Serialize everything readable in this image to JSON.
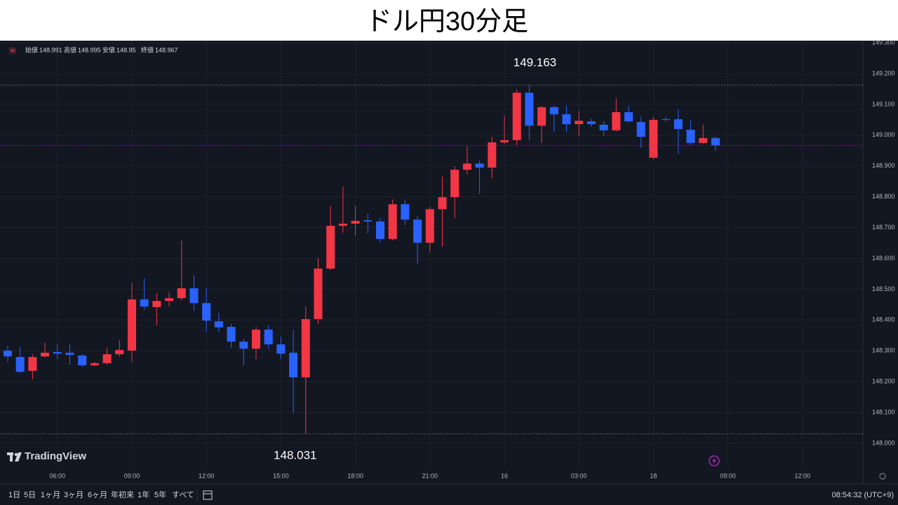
{
  "title": "ドル円30分足",
  "chart_data": {
    "type": "candlestick",
    "ohlc_labels": [
      "始値",
      "高値",
      "安値",
      "終値"
    ],
    "open": [
      148.301,
      148.28,
      148.235,
      148.282,
      148.296,
      148.294,
      148.285,
      148.253,
      148.26,
      148.289,
      148.301,
      148.467,
      148.442,
      148.462,
      148.471,
      148.503,
      148.455,
      148.396,
      148.378,
      148.33,
      148.307,
      148.369,
      148.321,
      148.294,
      148.214,
      148.403,
      148.567,
      148.706,
      148.713,
      148.724,
      148.72,
      148.663,
      148.776,
      148.726,
      148.651,
      148.76,
      148.799,
      148.888,
      148.908,
      148.895,
      148.977,
      148.984,
      149.138,
      149.031,
      149.091,
      149.068,
      149.036,
      149.045,
      149.034,
      149.016,
      149.075,
      149.043,
      148.927,
      149.052,
      149.052,
      149.018,
      148.975,
      148.991
    ],
    "high": [
      148.316,
      148.312,
      148.289,
      148.326,
      148.323,
      148.321,
      148.289,
      148.264,
      148.31,
      148.335,
      148.521,
      148.535,
      148.487,
      148.49,
      148.658,
      148.546,
      148.503,
      148.423,
      148.387,
      148.339,
      148.378,
      148.383,
      148.346,
      148.369,
      148.444,
      148.601,
      148.77,
      148.833,
      148.77,
      148.745,
      148.731,
      148.792,
      148.792,
      148.738,
      148.767,
      148.865,
      148.899,
      148.965,
      148.918,
      148.995,
      149.063,
      149.148,
      149.163,
      149.095,
      149.095,
      149.097,
      149.079,
      149.054,
      149.045,
      149.12,
      149.095,
      149.061,
      149.059,
      149.059,
      149.084,
      149.047,
      149.034,
      148.995
    ],
    "low": [
      148.264,
      148.228,
      148.207,
      148.278,
      148.273,
      148.255,
      148.248,
      148.25,
      148.255,
      148.282,
      148.266,
      148.433,
      148.383,
      148.444,
      148.464,
      148.43,
      148.362,
      148.36,
      148.31,
      148.253,
      148.273,
      148.307,
      148.273,
      148.096,
      148.031,
      148.387,
      148.562,
      148.683,
      148.674,
      148.681,
      148.653,
      148.658,
      148.708,
      148.583,
      148.622,
      148.638,
      148.731,
      148.874,
      148.811,
      148.861,
      148.972,
      148.968,
      148.984,
      148.975,
      149.011,
      149.011,
      148.997,
      149.027,
      148.997,
      149.011,
      149.041,
      148.959,
      148.922,
      149.045,
      148.94,
      148.968,
      148.972,
      148.95
    ],
    "close": [
      148.282,
      148.232,
      148.28,
      148.294,
      148.291,
      148.287,
      148.253,
      148.26,
      148.289,
      148.303,
      148.467,
      148.444,
      148.462,
      148.471,
      148.503,
      148.455,
      148.398,
      148.376,
      148.33,
      148.307,
      148.369,
      148.321,
      148.291,
      148.214,
      148.403,
      148.567,
      148.706,
      148.713,
      148.722,
      148.72,
      148.663,
      148.776,
      148.726,
      148.651,
      148.76,
      148.799,
      148.888,
      148.908,
      148.895,
      148.977,
      148.984,
      149.138,
      149.031,
      149.091,
      149.068,
      149.036,
      149.047,
      149.036,
      149.016,
      149.075,
      149.045,
      148.995,
      149.05,
      149.05,
      149.02,
      148.975,
      148.991,
      148.967
    ],
    "up_color": "#f23645",
    "down_color": "#2962ff",
    "last_price_color": "#9c27b0",
    "ylim": [
      147.918,
      149.307
    ],
    "yticks": [
      {
        "value": 148.0,
        "label": "148.000"
      },
      {
        "value": 148.1,
        "label": "148.100"
      },
      {
        "value": 148.2,
        "label": "148.200"
      },
      {
        "value": 148.3,
        "label": "148.300"
      },
      {
        "value": 148.4,
        "label": "148.400"
      },
      {
        "value": 148.5,
        "label": "148.500"
      },
      {
        "value": 148.6,
        "label": "148.600"
      },
      {
        "value": 148.7,
        "label": "148.700"
      },
      {
        "value": 148.8,
        "label": "148.800"
      },
      {
        "value": 148.9,
        "label": "148.900"
      },
      {
        "value": 149.0,
        "label": "149.000"
      },
      {
        "value": 149.1,
        "label": "149.100"
      },
      {
        "value": 149.2,
        "label": "149.200"
      },
      {
        "value": 149.3,
        "label": "149.300"
      }
    ],
    "xlim": [
      -0.62,
      68.87
    ],
    "xticks": [
      {
        "value": 4,
        "label": "06:00"
      },
      {
        "value": 10,
        "label": "09:00"
      },
      {
        "value": 16,
        "label": "12:00"
      },
      {
        "value": 22,
        "label": "15:00"
      },
      {
        "value": 28,
        "label": "18:00"
      },
      {
        "value": 34,
        "label": "21:00"
      },
      {
        "value": 40,
        "label": "16"
      },
      {
        "value": 46,
        "label": "03:00"
      },
      {
        "value": 52,
        "label": "18"
      },
      {
        "value": 58,
        "label": "09:00"
      },
      {
        "value": 64,
        "label": "12:00"
      }
    ],
    "grid": true
  },
  "ui": {
    "logo": "TradingView",
    "ranges": [
      "1日",
      "5日",
      "1ヶ月",
      "3ヶ月",
      "6ヶ月",
      "年初来",
      "1年",
      "5年",
      "すべて"
    ],
    "clock": "08:54:32 (UTC+9)"
  }
}
